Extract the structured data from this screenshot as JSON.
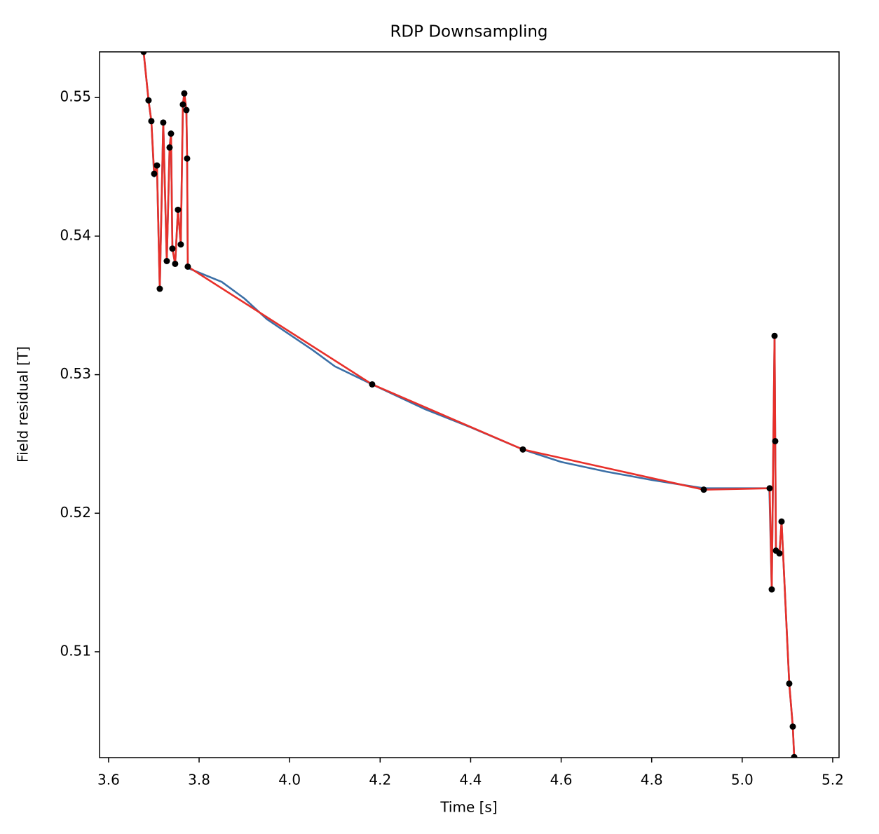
{
  "chart_data": {
    "type": "line",
    "title": "RDP Downsampling",
    "x_label": "Time [s]",
    "y_label": "Field residual [T]",
    "xlim": [
      3.58,
      5.214
    ],
    "ylim": [
      0.50236,
      0.5533
    ],
    "xticks": [
      3.6,
      3.8,
      {
        "value": 4.0,
        "label": "4.0"
      },
      4.2,
      4.4,
      4.6,
      4.8,
      {
        "value": 5.0,
        "label": "5.0"
      },
      5.2
    ],
    "yticks": [
      0.51,
      0.52,
      0.53,
      0.54,
      0.55
    ],
    "grid": false,
    "series": [
      {
        "color": "#3b6fa6",
        "marker": false,
        "x": [
          3.6774,
          3.6883,
          3.6945,
          3.7007,
          3.7069,
          3.7131,
          3.7208,
          3.7286,
          3.7348,
          3.7379,
          3.741,
          3.7471,
          3.7533,
          3.7595,
          3.7642,
          3.7673,
          3.7719,
          3.7735,
          3.775,
          3.85,
          3.9,
          3.95,
          4.0,
          4.05,
          4.1,
          4.1824,
          4.3,
          4.4,
          4.5154,
          4.6,
          4.7,
          4.8,
          4.9151,
          5.06,
          5.0653,
          5.0715,
          5.073,
          5.0746,
          5.0823,
          5.087,
          5.104,
          5.1118,
          5.1149
        ],
        "values": [
          0.5533,
          0.5498,
          0.5483,
          0.5443,
          0.5451,
          0.5362,
          0.5482,
          0.5382,
          0.5464,
          0.5474,
          0.5391,
          0.538,
          0.5419,
          0.5394,
          0.5495,
          0.5503,
          0.5491,
          0.5456,
          0.5377,
          0.5367,
          0.5355,
          0.534,
          0.5329,
          0.5318,
          0.5306,
          0.5293,
          0.5275,
          0.5262,
          0.5246,
          0.5237,
          0.523,
          0.5224,
          0.5218,
          0.5218,
          0.5145,
          0.5328,
          0.5252,
          0.5173,
          0.5171,
          0.5194,
          0.5077,
          0.5046,
          0.5024
        ]
      },
      {
        "color": "#e8302a",
        "marker": true,
        "marker_color": "#000000",
        "x": [
          3.6774,
          3.6883,
          3.6945,
          3.7007,
          3.7069,
          3.7131,
          3.7208,
          3.7286,
          3.7348,
          3.7379,
          3.741,
          3.7471,
          3.7533,
          3.7595,
          3.7642,
          3.7673,
          3.7719,
          3.7735,
          3.775,
          4.1824,
          4.5154,
          4.9151,
          5.0607,
          5.0653,
          5.0715,
          5.073,
          5.0746,
          5.0823,
          5.087,
          5.104,
          5.1118,
          5.1149
        ],
        "values": [
          0.5533,
          0.5498,
          0.5483,
          0.5445,
          0.5451,
          0.5362,
          0.5482,
          0.5382,
          0.5464,
          0.5474,
          0.5391,
          0.538,
          0.5419,
          0.5394,
          0.5495,
          0.5503,
          0.5491,
          0.5456,
          0.5378,
          0.5293,
          0.5246,
          0.5217,
          0.5218,
          0.5145,
          0.5328,
          0.5252,
          0.5173,
          0.5171,
          0.5194,
          0.5077,
          0.5046,
          0.5024
        ]
      }
    ]
  }
}
